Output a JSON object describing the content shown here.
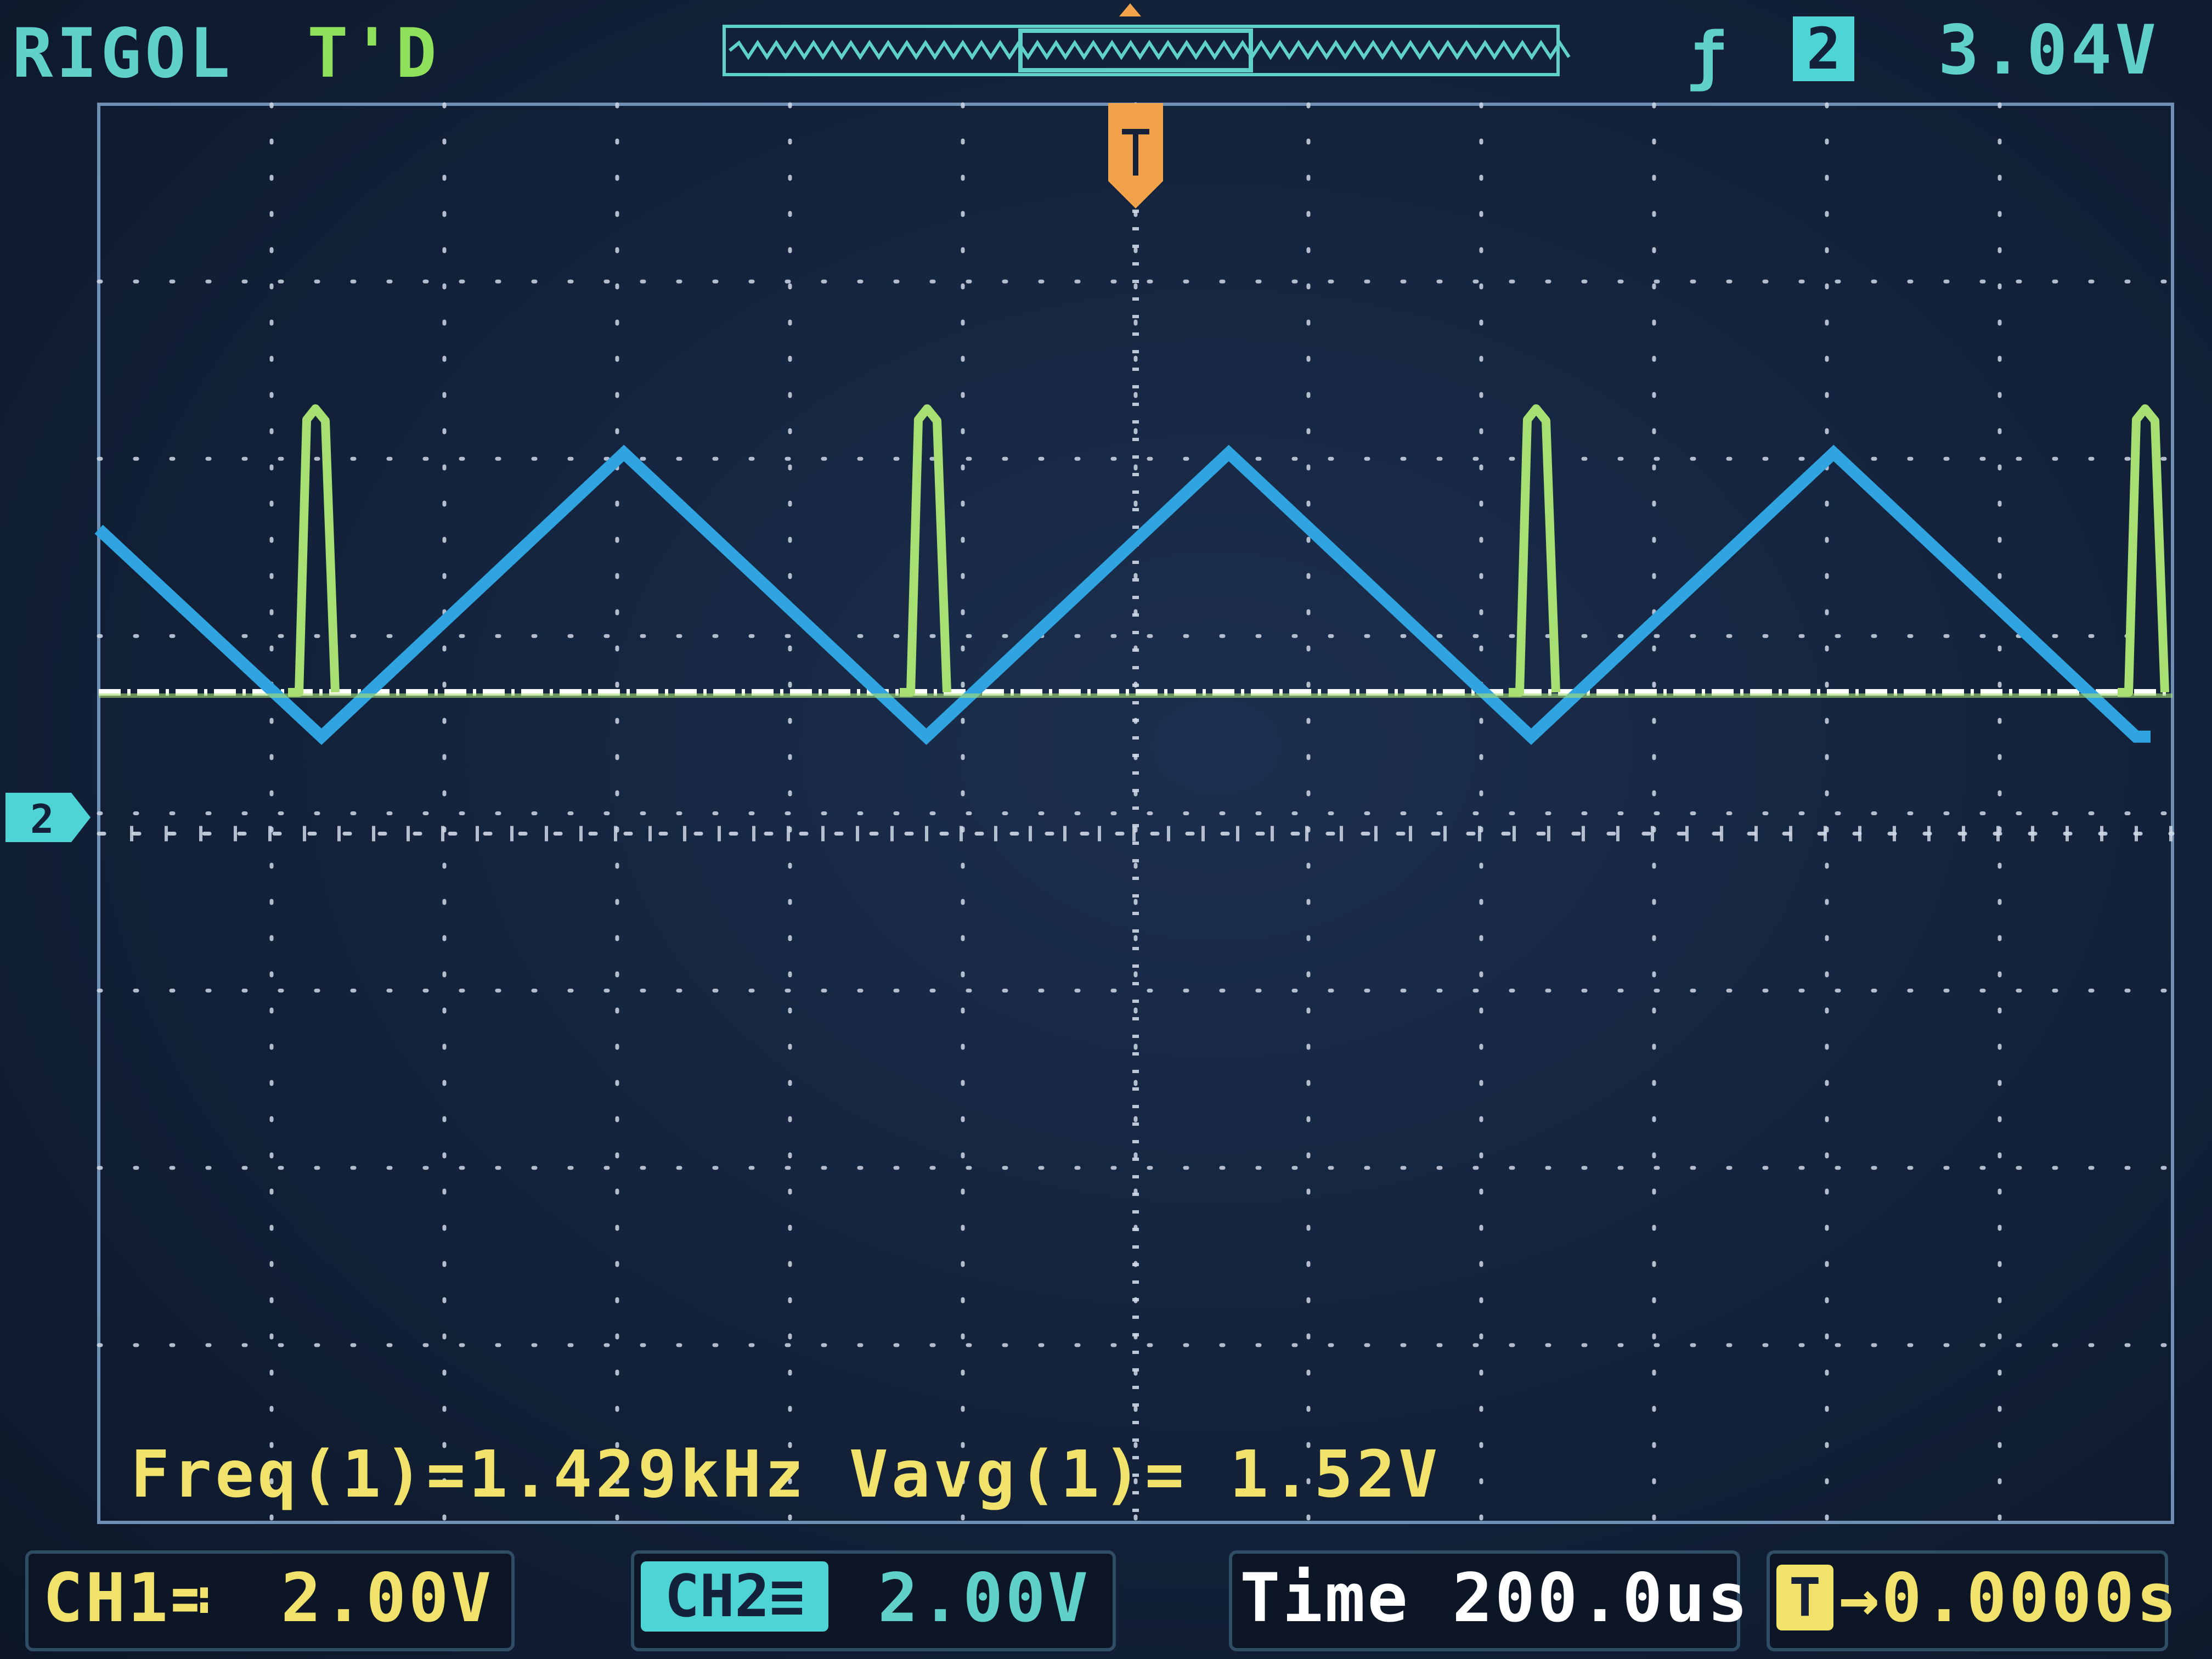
{
  "header": {
    "brand": "RIGOL",
    "trigger_status": "T'D",
    "trigger_edge_icon": "rising-edge-icon",
    "trigger_source": "2",
    "trigger_level": "3.04V"
  },
  "measurements": {
    "text": "Freq(1)=1.429kHz  Vavg(1)= 1.52V"
  },
  "channels": {
    "ch1": {
      "label": "CH1≕",
      "scale": "2.00V",
      "color": "#f0e26a"
    },
    "ch2": {
      "label": "CH2≡",
      "scale": "2.00V",
      "color": "#4fd4d6"
    }
  },
  "timebase": {
    "time": "Time 200.0us",
    "offset_icon": "T",
    "offset": "→0.0000s"
  },
  "colors": {
    "screen": "#13223a",
    "grid": "#cfd8e6",
    "triangle_wave": "#2fa4e0",
    "pulse_wave": "#a8df72",
    "baseline": "#ffffff",
    "trigger_marker": "#f2a24a"
  },
  "waveforms": {
    "triangle_period_div": 3.5,
    "pulse_period_div": 3.5,
    "triangle_peak_div": 1.35,
    "triangle_min_div": -0.25,
    "pulse_height_div": 1.6
  }
}
